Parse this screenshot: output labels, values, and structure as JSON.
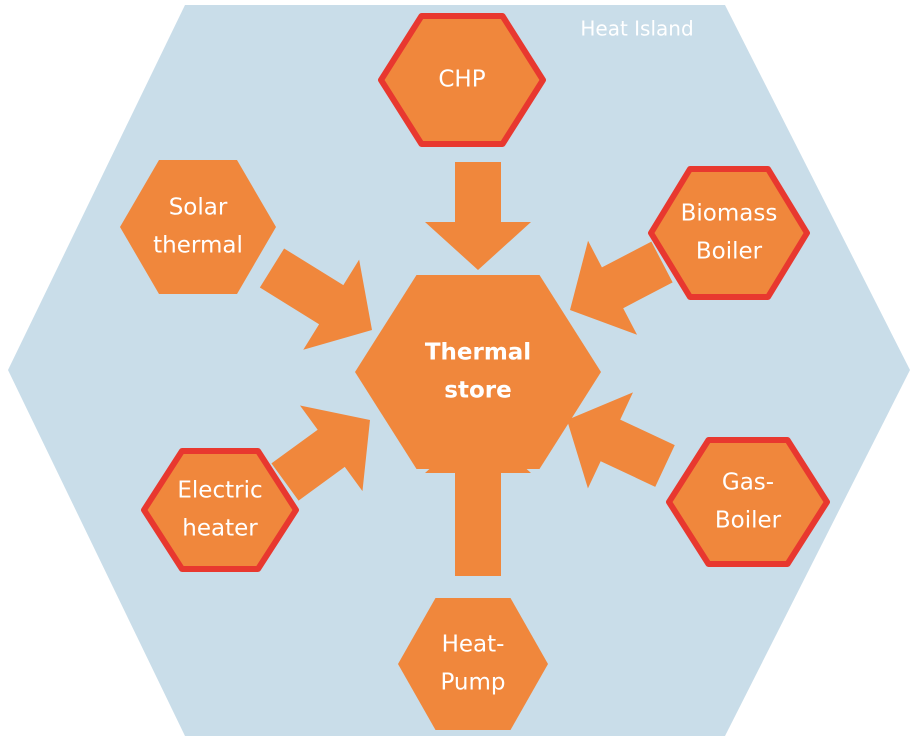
{
  "title": "Heat Island",
  "center": {
    "lines": [
      "Thermal",
      "store"
    ]
  },
  "nodes": [
    {
      "lines": [
        "CHP"
      ]
    },
    {
      "lines": [
        "Solar",
        "thermal"
      ]
    },
    {
      "lines": [
        "Biomass",
        "Boiler"
      ]
    },
    {
      "lines": [
        "Electric",
        "heater"
      ]
    },
    {
      "lines": [
        "Gas-",
        "Boiler"
      ]
    },
    {
      "lines": [
        "Heat-",
        "Pump"
      ]
    }
  ]
}
